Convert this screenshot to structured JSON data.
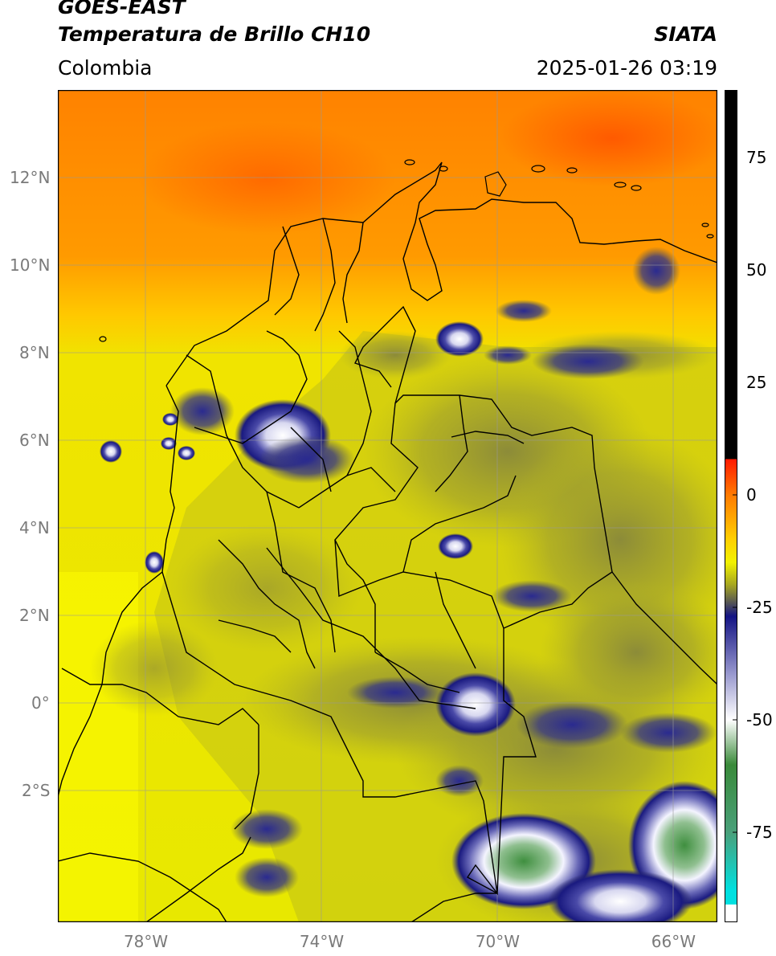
{
  "header": {
    "satellite": "GOES-EAST",
    "product": "Temperatura de Brillo CH10",
    "institution": "SIATA",
    "region": "Colombia",
    "datetime": "2025-01-26 03:19"
  },
  "map": {
    "lon_range": [
      -80,
      -65
    ],
    "lat_range": [
      -5,
      14
    ],
    "lon_ticks": [
      {
        "value": -78,
        "label": "78°W"
      },
      {
        "value": -74,
        "label": "74°W"
      },
      {
        "value": -70,
        "label": "70°W"
      },
      {
        "value": -66,
        "label": "66°W"
      }
    ],
    "lat_ticks": [
      {
        "value": 12,
        "label": "12°N"
      },
      {
        "value": 10,
        "label": "10°N"
      },
      {
        "value": 8,
        "label": "8°N"
      },
      {
        "value": 6,
        "label": "6°N"
      },
      {
        "value": 4,
        "label": "4°N"
      },
      {
        "value": 2,
        "label": "2°N"
      },
      {
        "value": 0,
        "label": "0°"
      },
      {
        "value": -2,
        "label": "2°S"
      }
    ],
    "colors": {
      "warm_sea": "#ff8a00",
      "mid": "#e6e600",
      "land_cloudfree": "#cfcf18",
      "grey_cloud": "#8a8a3a",
      "deep_convection_blue": "#1a1a8c",
      "cold_white": "#f0f0ff",
      "very_cold_green": "#3f8f3f"
    }
  },
  "colorbar": {
    "range": [
      -95,
      90
    ],
    "ticks": [
      {
        "value": 75,
        "label": "75"
      },
      {
        "value": 50,
        "label": "50"
      },
      {
        "value": 25,
        "label": "25"
      },
      {
        "value": 0,
        "label": "0"
      },
      {
        "value": -25,
        "label": "-25"
      },
      {
        "value": -50,
        "label": "-50"
      },
      {
        "value": -75,
        "label": "-75"
      }
    ],
    "stops": [
      {
        "value": 90,
        "color": "#000000"
      },
      {
        "value": 8,
        "color": "#000000"
      },
      {
        "value": 7.9,
        "color": "#ff1a00"
      },
      {
        "value": 0,
        "color": "#ff7a00"
      },
      {
        "value": -10,
        "color": "#ffd000"
      },
      {
        "value": -15,
        "color": "#f2f200"
      },
      {
        "value": -20,
        "color": "#a6a620"
      },
      {
        "value": -24,
        "color": "#555555"
      },
      {
        "value": -27,
        "color": "#141484"
      },
      {
        "value": -40,
        "color": "#9a9acf"
      },
      {
        "value": -50,
        "color": "#ffffff"
      },
      {
        "value": -60,
        "color": "#3a8a3a"
      },
      {
        "value": -75,
        "color": "#4aa07a"
      },
      {
        "value": -88,
        "color": "#00e0e0"
      },
      {
        "value": -91,
        "color": "#00e0e0"
      },
      {
        "value": -91.1,
        "color": "#ffffff"
      },
      {
        "value": -95,
        "color": "#ffffff"
      }
    ]
  }
}
